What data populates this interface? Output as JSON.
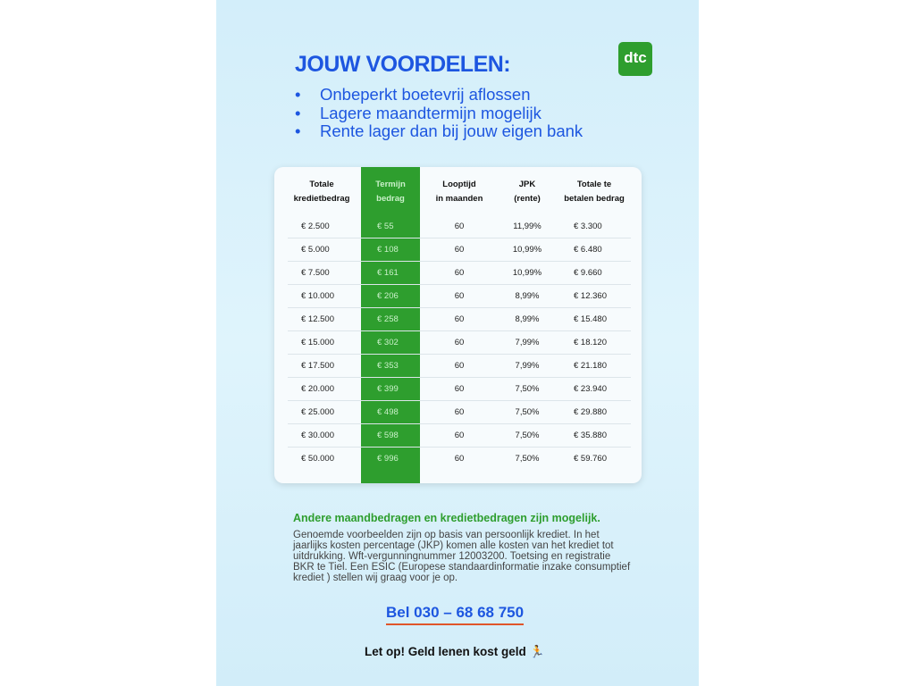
{
  "title": "JOUW VOORDELEN:",
  "logo": "dtc",
  "bullets": [
    "Onbeperkt boetevrij aflossen",
    "Lagere maandtermijn mogelijk",
    "Rente lager dan bij jouw eigen bank"
  ],
  "table": {
    "headers": [
      [
        "Totale",
        "kredietbedrag"
      ],
      [
        "Termijn",
        "bedrag"
      ],
      [
        "Looptijd",
        "in maanden"
      ],
      [
        "JPK",
        "(rente)"
      ],
      [
        "Totale te",
        "betalen bedrag"
      ]
    ],
    "rows": [
      [
        "€ 2.500",
        "€ 55",
        "60",
        "11,99%",
        "€ 3.300"
      ],
      [
        "€ 5.000",
        "€ 108",
        "60",
        "10,99%",
        "€ 6.480"
      ],
      [
        "€ 7.500",
        "€ 161",
        "60",
        "10,99%",
        "€ 9.660"
      ],
      [
        "€ 10.000",
        "€ 206",
        "60",
        "8,99%",
        "€ 12.360"
      ],
      [
        "€ 12.500",
        "€ 258",
        "60",
        "8,99%",
        "€ 15.480"
      ],
      [
        "€ 15.000",
        "€ 302",
        "60",
        "7,99%",
        "€ 18.120"
      ],
      [
        "€ 17.500",
        "€ 353",
        "60",
        "7,99%",
        "€ 21.180"
      ],
      [
        "€ 20.000",
        "€ 399",
        "60",
        "7,50%",
        "€ 23.940"
      ],
      [
        "€ 25.000",
        "€ 498",
        "60",
        "7,50%",
        "€ 29.880"
      ],
      [
        "€ 30.000",
        "€ 598",
        "60",
        "7,50%",
        "€ 35.880"
      ],
      [
        "€ 50.000",
        "€ 996",
        "60",
        "7,50%",
        "€ 59.760"
      ]
    ]
  },
  "note_heading": "Andere maandbedragen en kredietbedragen zijn mogelijk.",
  "note_text": "Genoemde voorbeelden zijn op basis van persoonlijk krediet. In het jaarlijks kosten percentage (JKP) komen alle kosten van het krediet tot uitdrukking. Wft-vergunningnummer 12003200. Toetsing en registratie BKR te Tiel. Een ESIC (Europese standaardinformatie inzake consumptief krediet ) stellen wij graag voor je op.",
  "call": "Bel 030 – 68 68 750",
  "warning": "Let op! Geld lenen kost geld",
  "colors": {
    "blue": "#1d56e0",
    "green": "#2e9e2e"
  }
}
